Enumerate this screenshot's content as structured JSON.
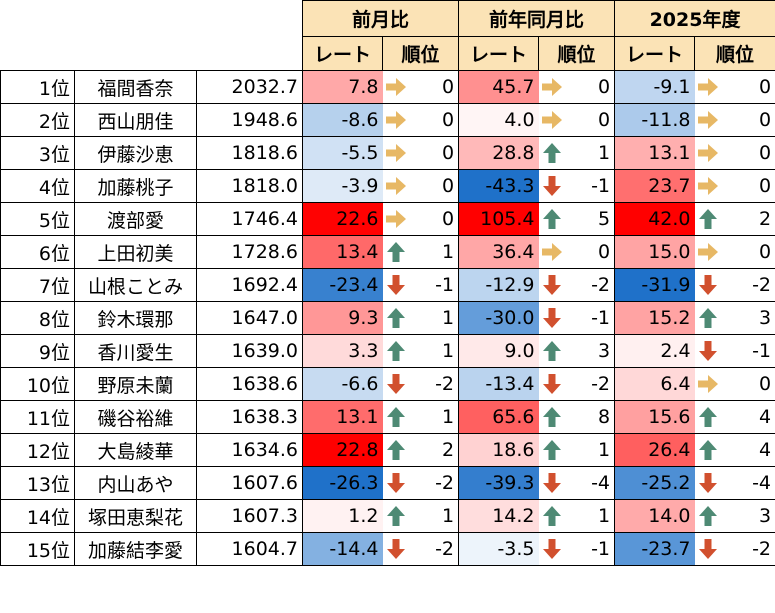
{
  "header": {
    "groups": [
      "前月比",
      "前年同月比",
      "2025年度"
    ],
    "sub": [
      "レート",
      "順位"
    ]
  },
  "colors": {
    "header_bg": "#fbe3b6",
    "up_arrow": "#4e8a74",
    "down_arrow": "#d1502e",
    "flat_arrow": "#e7b865"
  },
  "rows": [
    {
      "rank": "1位",
      "name": "福間香奈",
      "score": "2032.7",
      "m_rate": "7.8",
      "m_dir": "flat",
      "m_rank": "0",
      "y_rate": "45.7",
      "y_dir": "flat",
      "y_rank": "0",
      "f_rate": "-9.1",
      "f_dir": "flat",
      "f_rank": "0"
    },
    {
      "rank": "2位",
      "name": "西山朋佳",
      "score": "1948.6",
      "m_rate": "-8.6",
      "m_dir": "flat",
      "m_rank": "0",
      "y_rate": "4.0",
      "y_dir": "flat",
      "y_rank": "0",
      "f_rate": "-11.8",
      "f_dir": "flat",
      "f_rank": "0"
    },
    {
      "rank": "3位",
      "name": "伊藤沙恵",
      "score": "1818.6",
      "m_rate": "-5.5",
      "m_dir": "flat",
      "m_rank": "0",
      "y_rate": "28.8",
      "y_dir": "up",
      "y_rank": "1",
      "f_rate": "13.1",
      "f_dir": "flat",
      "f_rank": "0"
    },
    {
      "rank": "4位",
      "name": "加藤桃子",
      "score": "1818.0",
      "m_rate": "-3.9",
      "m_dir": "flat",
      "m_rank": "0",
      "y_rate": "-43.3",
      "y_dir": "down",
      "y_rank": "-1",
      "f_rate": "23.7",
      "f_dir": "flat",
      "f_rank": "0"
    },
    {
      "rank": "5位",
      "name": "渡部愛",
      "score": "1746.4",
      "m_rate": "22.6",
      "m_dir": "flat",
      "m_rank": "0",
      "y_rate": "105.4",
      "y_dir": "up",
      "y_rank": "5",
      "f_rate": "42.0",
      "f_dir": "up",
      "f_rank": "2"
    },
    {
      "rank": "6位",
      "name": "上田初美",
      "score": "1728.6",
      "m_rate": "13.4",
      "m_dir": "up",
      "m_rank": "1",
      "y_rate": "36.4",
      "y_dir": "flat",
      "y_rank": "0",
      "f_rate": "15.0",
      "f_dir": "flat",
      "f_rank": "0"
    },
    {
      "rank": "7位",
      "name": "山根ことみ",
      "score": "1692.4",
      "m_rate": "-23.4",
      "m_dir": "down",
      "m_rank": "-1",
      "y_rate": "-12.9",
      "y_dir": "down",
      "y_rank": "-2",
      "f_rate": "-31.9",
      "f_dir": "down",
      "f_rank": "-2"
    },
    {
      "rank": "8位",
      "name": "鈴木環那",
      "score": "1647.0",
      "m_rate": "9.3",
      "m_dir": "up",
      "m_rank": "1",
      "y_rate": "-30.0",
      "y_dir": "down",
      "y_rank": "-1",
      "f_rate": "15.2",
      "f_dir": "up",
      "f_rank": "3"
    },
    {
      "rank": "9位",
      "name": "香川愛生",
      "score": "1639.0",
      "m_rate": "3.3",
      "m_dir": "up",
      "m_rank": "1",
      "y_rate": "9.0",
      "y_dir": "up",
      "y_rank": "3",
      "f_rate": "2.4",
      "f_dir": "down",
      "f_rank": "-1"
    },
    {
      "rank": "10位",
      "name": "野原未蘭",
      "score": "1638.6",
      "m_rate": "-6.6",
      "m_dir": "down",
      "m_rank": "-2",
      "y_rate": "-13.4",
      "y_dir": "down",
      "y_rank": "-2",
      "f_rate": "6.4",
      "f_dir": "flat",
      "f_rank": "0"
    },
    {
      "rank": "11位",
      "name": "磯谷裕維",
      "score": "1638.3",
      "m_rate": "13.1",
      "m_dir": "up",
      "m_rank": "1",
      "y_rate": "65.6",
      "y_dir": "up",
      "y_rank": "8",
      "f_rate": "15.6",
      "f_dir": "up",
      "f_rank": "4"
    },
    {
      "rank": "12位",
      "name": "大島綾華",
      "score": "1634.6",
      "m_rate": "22.8",
      "m_dir": "up",
      "m_rank": "2",
      "y_rate": "18.6",
      "y_dir": "up",
      "y_rank": "1",
      "f_rate": "26.4",
      "f_dir": "up",
      "f_rank": "4"
    },
    {
      "rank": "13位",
      "name": "内山あや",
      "score": "1607.6",
      "m_rate": "-26.3",
      "m_dir": "down",
      "m_rank": "-2",
      "y_rate": "-39.3",
      "y_dir": "down",
      "y_rank": "-4",
      "f_rate": "-25.2",
      "f_dir": "down",
      "f_rank": "-4"
    },
    {
      "rank": "14位",
      "name": "塚田恵梨花",
      "score": "1607.3",
      "m_rate": "1.2",
      "m_dir": "up",
      "m_rank": "1",
      "y_rate": "14.2",
      "y_dir": "up",
      "y_rank": "1",
      "f_rate": "14.0",
      "f_dir": "up",
      "f_rank": "3"
    },
    {
      "rank": "15位",
      "name": "加藤結李愛",
      "score": "1604.7",
      "m_rate": "-14.4",
      "m_dir": "down",
      "m_rank": "-2",
      "y_rate": "-3.5",
      "y_dir": "down",
      "y_rank": "-1",
      "f_rate": "-23.7",
      "f_dir": "down",
      "f_rank": "-2"
    }
  ]
}
